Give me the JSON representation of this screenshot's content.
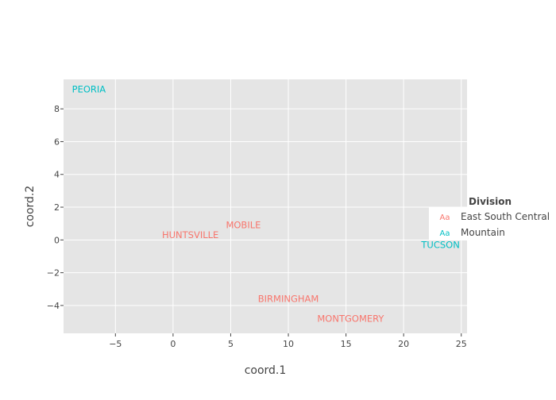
{
  "chart_data": {
    "type": "scatter",
    "title": "",
    "xlabel": "coord.1",
    "ylabel": "coord.2",
    "xlim": [
      -9.5,
      25.5
    ],
    "ylim": [
      -5.7,
      9.8
    ],
    "x_ticks": [
      -5,
      0,
      5,
      10,
      15,
      20,
      25
    ],
    "y_ticks": [
      -4,
      -2,
      0,
      2,
      4,
      6,
      8
    ],
    "x_tick_labels": [
      "−5",
      "0",
      "5",
      "10",
      "15",
      "20",
      "25"
    ],
    "y_tick_labels": [
      "−4",
      "−2",
      "0",
      "2",
      "4",
      "6",
      "8"
    ],
    "grid": true,
    "legend": {
      "title": "Division",
      "placement": "right",
      "symbol": "Aa",
      "entries": [
        {
          "name": "East South Central",
          "color": "#f8766d"
        },
        {
          "name": "Mountain",
          "color": "#00bfc4"
        }
      ]
    },
    "series": [
      {
        "name": "East South Central",
        "color": "#f8766d",
        "points": [
          {
            "label": "MOBILE",
            "x": 6.1,
            "y": 0.9
          },
          {
            "label": "HUNTSVILLE",
            "x": 1.5,
            "y": 0.3
          },
          {
            "label": "BIRMINGHAM",
            "x": 10.0,
            "y": -3.6
          },
          {
            "label": "MONTGOMERY",
            "x": 15.4,
            "y": -4.8
          }
        ]
      },
      {
        "name": "Mountain",
        "color": "#00bfc4",
        "points": [
          {
            "label": "PEORIA",
            "x": -7.3,
            "y": 9.2
          },
          {
            "label": "TUCSON",
            "x": 23.2,
            "y": -0.3
          }
        ]
      }
    ]
  },
  "colors": {
    "panel_background": "#e5e5e5",
    "grid": "#ffffff",
    "axis_text": "#444444"
  }
}
